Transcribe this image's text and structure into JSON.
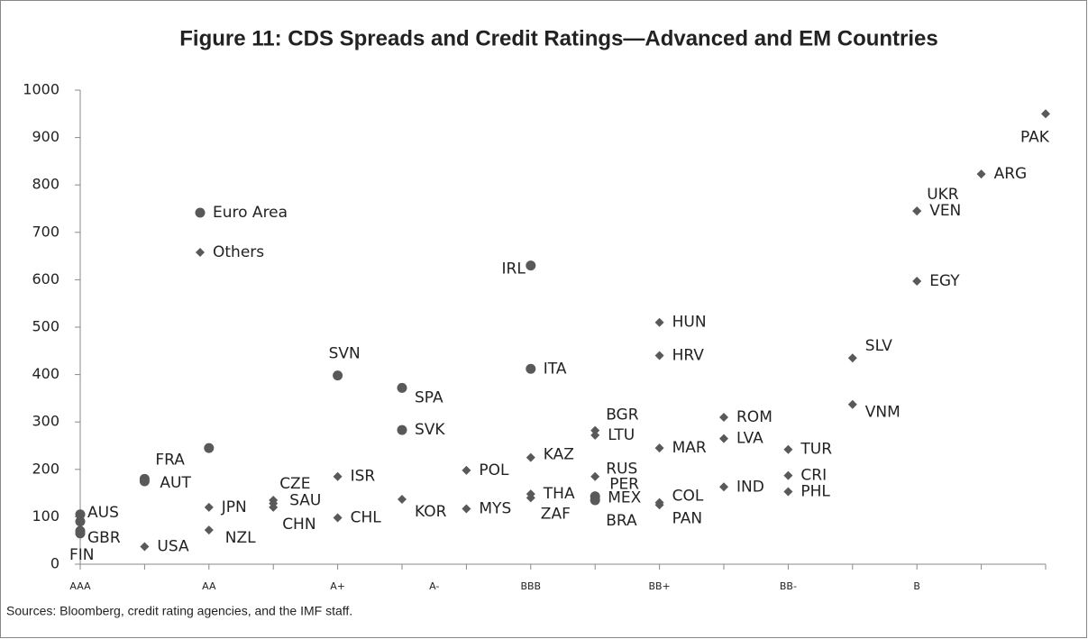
{
  "chart_data": {
    "type": "scatter",
    "title": "Figure 11: CDS Spreads and Credit Ratings—Advanced and EM Countries",
    "source": "Sources: Bloomberg, credit rating agencies, and the IMF staff.",
    "xlim": [
      0,
      15
    ],
    "xticks": [
      {
        "value": 0,
        "label": "AAA"
      },
      {
        "value": 2,
        "label": "AA"
      },
      {
        "value": 4,
        "label": "A+"
      },
      {
        "value": 5.5,
        "label": "A-"
      },
      {
        "value": 7,
        "label": "BBB"
      },
      {
        "value": 9,
        "label": "BB+"
      },
      {
        "value": 11,
        "label": "BB-"
      },
      {
        "value": 13,
        "label": "B"
      }
    ],
    "ylim": [
      0,
      1000
    ],
    "yticks": [
      0,
      100,
      200,
      300,
      400,
      500,
      600,
      700,
      800,
      900,
      1000
    ],
    "series": [
      {
        "name": "Euro Area",
        "marker": "circle",
        "color": "#595959",
        "x": [
          0,
          0,
          0,
          0,
          1,
          1,
          2,
          4,
          5,
          5,
          7,
          7,
          8,
          8
        ],
        "values": [
          105,
          90,
          70,
          65,
          180,
          175,
          245,
          398,
          372,
          283,
          630,
          412,
          143,
          135
        ],
        "labels": [
          "AUS",
          null,
          "GBR",
          "FIN",
          "FRA",
          "AUT",
          null,
          "SVN",
          "SPA",
          "SVK",
          "IRL",
          "ITA",
          null,
          null
        ]
      },
      {
        "name": "Others",
        "marker": "diamond",
        "color": "#595959",
        "x": [
          1,
          2,
          2,
          3,
          3,
          3,
          4,
          4,
          5,
          6,
          6,
          7,
          7,
          7,
          8,
          8,
          8,
          8,
          8,
          8,
          9,
          9,
          9,
          9,
          9,
          10,
          10,
          10,
          11,
          11,
          11,
          12,
          12,
          13,
          13,
          13,
          14,
          15
        ],
        "values": [
          37,
          120,
          72,
          135,
          128,
          120,
          185,
          98,
          137,
          198,
          117,
          225,
          148,
          140,
          282,
          272,
          185,
          145,
          140,
          135,
          510,
          440,
          245,
          130,
          125,
          310,
          265,
          163,
          242,
          187,
          153,
          435,
          337,
          745,
          745,
          597,
          823,
          950
        ],
        "labels": [
          "USA",
          "JPN",
          "NZL",
          "CZE",
          "SAU",
          "CHN",
          "ISR",
          "CHL",
          "KOR",
          "POL",
          "MYS",
          "KAZ",
          "THA",
          "ZAF",
          "BGR",
          "LTU",
          "RUS",
          "PER",
          "MEX",
          "BRA",
          "HUN",
          "HRV",
          "MAR",
          "COL",
          "PAN",
          "ROM",
          "LVA",
          "IND",
          "TUR",
          "CRI",
          "PHL",
          "SLV",
          "VNM",
          "VEN",
          "UKR",
          "EGY",
          "ARG",
          "PAK"
        ]
      }
    ]
  }
}
